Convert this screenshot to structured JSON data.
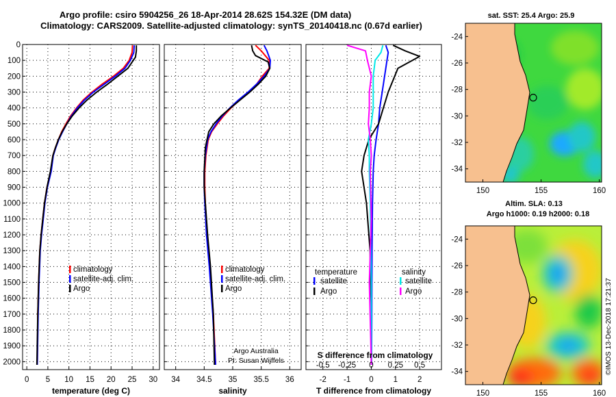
{
  "title": {
    "line1": "Argo profile: csiro 5904256_26 18-Apr-2014 28.62S 154.32E (DM data)",
    "line2": "Climatology: CARS2009. Satellite-adjusted climatology: synTS_20140418.nc (0.67d earlier)"
  },
  "colors": {
    "climatology": "#ff0000",
    "satellite": "#0000ff",
    "argo": "#000000",
    "sat_s": "#00e8e8",
    "argo_s": "#ff00ff",
    "land": "#f7c08f"
  },
  "depth_axis": {
    "min": 0,
    "max": 2050,
    "ticks": [
      "0",
      "100",
      "200",
      "300",
      "400",
      "500",
      "600",
      "700",
      "800",
      "900",
      "1000",
      "1100",
      "1200",
      "1300",
      "1400",
      "1500",
      "1600",
      "1700",
      "1800",
      "1900",
      "2000"
    ]
  },
  "chart_data": [
    {
      "id": "temperature",
      "type": "line",
      "xlabel": "temperature (deg C)",
      "xlim": [
        -1,
        31.5
      ],
      "ylim": [
        0,
        2050
      ],
      "xticks": [
        "0",
        "5",
        "10",
        "15",
        "20",
        "25",
        "30"
      ],
      "xtick_values": [
        0,
        5,
        10,
        15,
        20,
        25,
        30
      ],
      "legend": [
        "climatology",
        "satellite-adj. clim.",
        "Argo"
      ],
      "series": [
        {
          "name": "climatology",
          "color": "red",
          "x": [
            25.1,
            25.0,
            24.3,
            22.9,
            20.6,
            17.9,
            15.5,
            13.4,
            11.8,
            10.4,
            9.3,
            8.3,
            7.5,
            6.8,
            6.2,
            5.7,
            4.8,
            4.2,
            3.8,
            3.4,
            3.1,
            2.8,
            2.6,
            2.5
          ],
          "depth": [
            5,
            50,
            100,
            150,
            200,
            250,
            300,
            350,
            400,
            450,
            500,
            550,
            600,
            650,
            700,
            800,
            900,
            1000,
            1100,
            1200,
            1300,
            1500,
            1700,
            2020
          ]
        },
        {
          "name": "satellite-adj. clim.",
          "color": "blue",
          "x": [
            25.5,
            25.4,
            24.6,
            23.3,
            21.0,
            18.4,
            15.8,
            13.7,
            12.0,
            10.6,
            9.5,
            8.5,
            7.6,
            6.9,
            6.3,
            5.8,
            4.9,
            4.3,
            3.9,
            3.5,
            3.2,
            2.9,
            2.7,
            2.5
          ],
          "depth": [
            5,
            50,
            100,
            150,
            200,
            250,
            300,
            350,
            400,
            450,
            500,
            550,
            600,
            650,
            700,
            800,
            900,
            1000,
            1100,
            1200,
            1300,
            1500,
            1700,
            2020
          ]
        },
        {
          "name": "Argo",
          "color": "black",
          "x": [
            26.0,
            26.0,
            25.8,
            24.0,
            21.6,
            19.2,
            16.6,
            14.3,
            12.4,
            10.8,
            9.5,
            8.4,
            7.5,
            6.8,
            6.2,
            5.6,
            4.8,
            4.2,
            3.8,
            3.4,
            3.1,
            2.8,
            2.6,
            2.4
          ],
          "depth": [
            5,
            40,
            80,
            150,
            200,
            250,
            300,
            350,
            400,
            450,
            500,
            550,
            600,
            650,
            700,
            800,
            900,
            1000,
            1100,
            1200,
            1300,
            1500,
            1700,
            2020
          ]
        }
      ]
    },
    {
      "id": "salinity",
      "type": "line",
      "xlabel": "salinity",
      "xlim": [
        33.8,
        36.2
      ],
      "ylim": [
        0,
        2050
      ],
      "xticks": [
        "34",
        "34.5",
        "35",
        "35.5",
        "36"
      ],
      "xtick_values": [
        34,
        34.5,
        35,
        35.5,
        36
      ],
      "legend": [
        "climatology",
        "satellite-adj. clim.",
        "Argo"
      ],
      "series": [
        {
          "name": "climatology",
          "color": "red",
          "x": [
            35.4,
            35.5,
            35.64,
            35.64,
            35.52,
            35.42,
            35.28,
            35.12,
            34.97,
            34.84,
            34.73,
            34.63,
            34.57,
            34.53,
            34.51,
            34.51,
            34.52,
            34.55,
            34.6,
            34.66,
            34.7
          ],
          "depth": [
            5,
            40,
            100,
            150,
            200,
            250,
            300,
            350,
            400,
            450,
            500,
            550,
            600,
            700,
            800,
            900,
            1000,
            1200,
            1400,
            1700,
            2020
          ]
        },
        {
          "name": "satellite-adj. clim.",
          "color": "blue",
          "x": [
            35.55,
            35.6,
            35.66,
            35.65,
            35.55,
            35.42,
            35.27,
            35.1,
            34.95,
            34.82,
            34.71,
            34.62,
            34.56,
            34.52,
            34.5,
            34.5,
            34.51,
            34.54,
            34.59,
            34.65,
            34.7
          ],
          "depth": [
            5,
            40,
            100,
            150,
            200,
            250,
            300,
            350,
            400,
            450,
            500,
            550,
            600,
            700,
            800,
            900,
            1000,
            1200,
            1400,
            1700,
            2020
          ]
        },
        {
          "name": "Argo",
          "color": "black",
          "x": [
            35.33,
            35.35,
            35.4,
            35.62,
            35.65,
            35.58,
            35.45,
            35.3,
            35.13,
            34.96,
            34.8,
            34.67,
            34.58,
            34.52,
            34.5,
            34.5,
            34.52,
            34.56,
            34.61,
            34.66,
            34.68
          ],
          "depth": [
            5,
            40,
            70,
            110,
            150,
            200,
            250,
            300,
            350,
            400,
            450,
            500,
            550,
            650,
            800,
            900,
            1000,
            1200,
            1400,
            1700,
            2020
          ]
        }
      ]
    },
    {
      "id": "difference",
      "type": "line",
      "xlabel": "T difference from climatology",
      "xlabel2": "S difference from climatology",
      "xlim": [
        -2.7,
        2.9
      ],
      "ylim": [
        0,
        2050
      ],
      "xticks": [
        "-2",
        "-1",
        "0",
        "1",
        "2"
      ],
      "xtick_values": [
        -2,
        -1,
        0,
        1,
        2
      ],
      "xticks_s": [
        "-0.5",
        "-0.25",
        "0",
        "0.25",
        "0.5"
      ],
      "xtick_s_values": [
        -0.5,
        -0.25,
        0,
        0.25,
        0.5
      ],
      "legend_t_title": "temperature",
      "legend_s_title": "salinity",
      "legend_t": [
        "satellite",
        "Argo"
      ],
      "legend_s": [
        "satellite",
        "Argo"
      ],
      "series": [
        {
          "name": "T diff satellite",
          "color": "blue",
          "scale": "T",
          "x": [
            0.6,
            0.7,
            0.65,
            0.55,
            0.45,
            0.35,
            0.3,
            0.2,
            0.12,
            0.08,
            0.05,
            0.03,
            0.02,
            0.01
          ],
          "depth": [
            5,
            50,
            100,
            200,
            300,
            400,
            500,
            600,
            700,
            800,
            1000,
            1300,
            1700,
            2020
          ]
        },
        {
          "name": "T diff Argo",
          "color": "black",
          "scale": "T",
          "x": [
            0.9,
            1.4,
            2.0,
            1.1,
            0.7,
            0.5,
            0.3,
            -0.1,
            -0.3,
            -0.4,
            -0.2,
            -0.05,
            0.0,
            0.0
          ],
          "depth": [
            5,
            40,
            75,
            150,
            300,
            400,
            500,
            600,
            700,
            800,
            1000,
            1300,
            1700,
            2020
          ]
        },
        {
          "name": "S diff satellite",
          "color": "cyan",
          "scale": "S",
          "x": [
            0.12,
            0.1,
            0.04,
            0.02,
            0.02,
            0.0,
            -0.03,
            -0.02,
            -0.02,
            -0.01,
            0.0,
            0.0
          ],
          "depth": [
            5,
            50,
            100,
            200,
            400,
            500,
            600,
            700,
            800,
            1000,
            1500,
            2020
          ]
        },
        {
          "name": "S diff Argo",
          "color": "magenta",
          "scale": "S",
          "x": [
            -0.25,
            -0.06,
            -0.04,
            0.0,
            -0.02,
            -0.02,
            -0.03,
            -0.01,
            0.0,
            -0.01,
            0.0,
            -0.02,
            0.0
          ],
          "depth": [
            5,
            40,
            100,
            200,
            300,
            400,
            500,
            600,
            700,
            800,
            1100,
            1500,
            2020
          ]
        }
      ]
    },
    {
      "id": "sst_map",
      "type": "heatmap",
      "title": "sat. SST: 25.4 Argo: 25.9",
      "lon_range": [
        148.5,
        160.2
      ],
      "lat_range": [
        -35.0,
        -23.0
      ],
      "xticks": [
        "150",
        "155",
        "160"
      ],
      "xtick_values": [
        150,
        155,
        160
      ],
      "yticks": [
        "-24",
        "-26",
        "-28",
        "-30",
        "-32",
        "-34"
      ],
      "ytick_values": [
        -24,
        -26,
        -28,
        -30,
        -32,
        -34
      ],
      "float_position": {
        "lon": 154.32,
        "lat": -28.62
      }
    },
    {
      "id": "sla_map",
      "type": "heatmap",
      "title1": "Altim. SLA: 0.13",
      "title2": "Argo h1000: 0.19 h2000: 0.18",
      "lon_range": [
        148.5,
        160.2
      ],
      "lat_range": [
        -35.0,
        -23.0
      ],
      "xticks": [
        "150",
        "155",
        "160"
      ],
      "xtick_values": [
        150,
        155,
        160
      ],
      "yticks": [
        "-24",
        "-26",
        "-28",
        "-30",
        "-32",
        "-34"
      ],
      "ytick_values": [
        -24,
        -26,
        -28,
        -30,
        -32,
        -34
      ],
      "float_position": {
        "lon": 154.32,
        "lat": -28.62
      }
    }
  ],
  "credit": {
    "line1": "Argo Australia",
    "line2": "PI: Susan Wijffels"
  },
  "timestamp": "©IMOS 13-Dec-2018 17:21:37"
}
